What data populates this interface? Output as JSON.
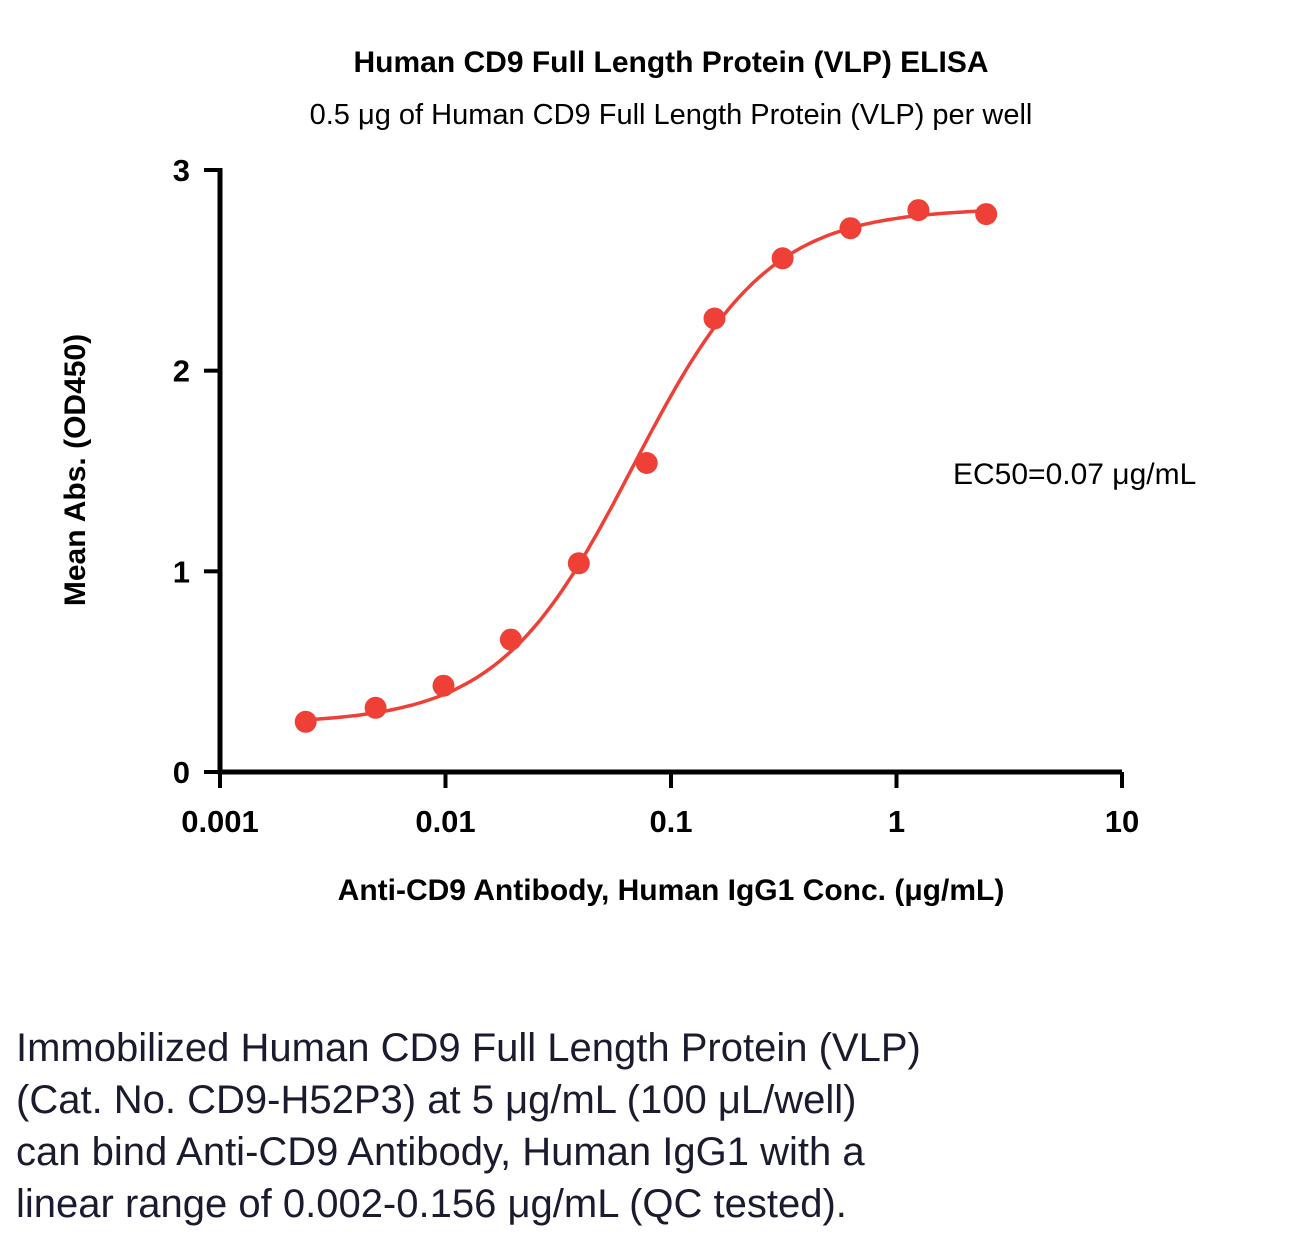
{
  "chart": {
    "title": "Human CD9 Full Length Protein (VLP) ELISA",
    "subtitle": "0.5 μg of Human CD9 Full Length Protein (VLP) per well",
    "ylabel": "Mean Abs. (OD450)",
    "xlabel": "Anti-CD9 Antibody, Human IgG1 Conc. (μg/mL)",
    "annotation": "EC50=0.07 μg/mL"
  },
  "chart_data": {
    "type": "scatter",
    "x_scale": "log10",
    "series_name": "Anti-CD9 Antibody, Human IgG1",
    "x": [
      0.0024,
      0.0049,
      0.0098,
      0.0195,
      0.039,
      0.078,
      0.156,
      0.3125,
      0.625,
      1.25,
      2.5
    ],
    "y": [
      0.25,
      0.32,
      0.43,
      0.66,
      1.04,
      1.54,
      2.26,
      2.56,
      2.71,
      2.8,
      2.78
    ],
    "fit": {
      "model": "4PL",
      "bottom": 0.24,
      "top": 2.81,
      "ec50": 0.068,
      "hill": 1.45
    },
    "ec50_label": "EC50=0.07 μg/mL",
    "xlim": [
      0.001,
      10
    ],
    "ylim": [
      0,
      3
    ],
    "x_ticks": [
      0.001,
      0.01,
      0.1,
      1,
      10
    ],
    "x_tick_labels": [
      "0.001",
      "0.01",
      "0.1",
      "1",
      "10"
    ],
    "y_ticks": [
      0,
      1,
      2,
      3
    ],
    "y_tick_labels": [
      "0",
      "1",
      "2",
      "3"
    ],
    "grid": false,
    "legend": false,
    "marker_color": "#ee4037",
    "line_color": "#ee4037",
    "title": "Human CD9 Full Length Protein (VLP) ELISA",
    "xlabel": "Anti-CD9 Antibody, Human IgG1 Conc. (μg/mL)",
    "ylabel": "Mean Abs. (OD450)"
  },
  "caption": {
    "lines": [
      "Immobilized Human CD9 Full Length Protein (VLP)",
      "(Cat. No. CD9-H52P3) at 5 μg/mL (100 μL/well)",
      "can bind Anti-CD9 Antibody, Human IgG1 with a",
      "linear range of 0.002-0.156 μg/mL (QC tested)."
    ]
  },
  "colors": {
    "accent": "#ee4037",
    "axis": "#000000",
    "caption_text": "#1b1b2f"
  }
}
